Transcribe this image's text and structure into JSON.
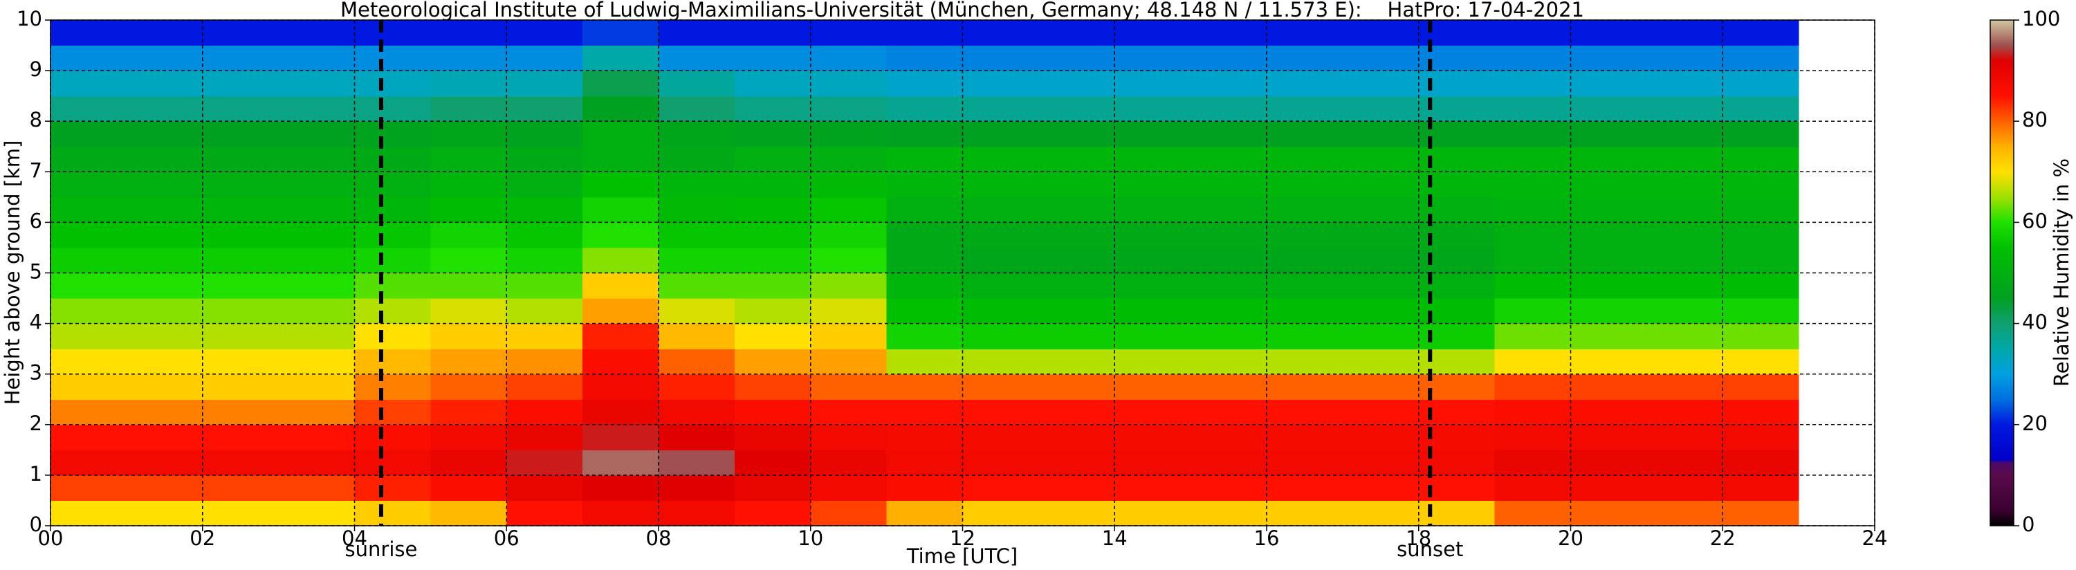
{
  "chart_data": {
    "type": "heatmap",
    "title": "Meteorological Institute of Ludwig-Maximilians-Universität (München, Germany; 48.148 N / 11.573 E):    HatPro: 17-04-2021",
    "x_label": "Time [UTC]",
    "y_label": "Height above ground [km]",
    "colorbar_label": "Relative Humidity in %",
    "xlim": [
      0,
      24
    ],
    "xticks": [
      {
        "value": 0,
        "label": "00"
      },
      {
        "value": 2,
        "label": "02"
      },
      {
        "value": 4,
        "label": "04"
      },
      {
        "value": 6,
        "label": "06"
      },
      {
        "value": 8,
        "label": "08"
      },
      {
        "value": 10,
        "label": "10"
      },
      {
        "value": 12,
        "label": "12"
      },
      {
        "value": 14,
        "label": "14"
      },
      {
        "value": 16,
        "label": "16"
      },
      {
        "value": 18,
        "label": "18"
      },
      {
        "value": 20,
        "label": "20"
      },
      {
        "value": 22,
        "label": "22"
      },
      {
        "value": 24,
        "label": "24"
      }
    ],
    "ylim": [
      0,
      10
    ],
    "yticks": [
      0,
      1,
      2,
      3,
      4,
      5,
      6,
      7,
      8,
      9,
      10
    ],
    "clim": [
      0,
      100
    ],
    "cticks": [
      0,
      20,
      40,
      60,
      80,
      100
    ],
    "grid": true,
    "annotations": [
      {
        "x": 4.35,
        "label": "sunrise"
      },
      {
        "x": 18.15,
        "label": "sunset"
      }
    ],
    "colorscale": [
      [
        0,
        "#000000"
      ],
      [
        3,
        "#3a0030"
      ],
      [
        10,
        "#5a0a4a"
      ],
      [
        12.5,
        "#4a0a6a"
      ],
      [
        13,
        "#0000c8"
      ],
      [
        20,
        "#0018e0"
      ],
      [
        25,
        "#0070e0"
      ],
      [
        30,
        "#00a0e0"
      ],
      [
        35,
        "#00a8a8"
      ],
      [
        40,
        "#10a070"
      ],
      [
        45,
        "#00a020"
      ],
      [
        55,
        "#00c000"
      ],
      [
        60,
        "#20e000"
      ],
      [
        65,
        "#a0e000"
      ],
      [
        70,
        "#ffe000"
      ],
      [
        75,
        "#ffb000"
      ],
      [
        80,
        "#ff6000"
      ],
      [
        85,
        "#ff1000"
      ],
      [
        92,
        "#e00000"
      ],
      [
        95,
        "#a05050"
      ],
      [
        100,
        "#d0c8a0"
      ]
    ],
    "x": [
      0.5,
      1.5,
      2.5,
      3.5,
      4.5,
      5.5,
      6.5,
      7.5,
      8.5,
      9.5,
      10.5,
      11.5,
      12.5,
      13.5,
      14.5,
      15.5,
      16.5,
      17.5,
      18.5,
      19.5,
      20.5,
      21.5,
      22.5
    ],
    "y": [
      0.25,
      0.75,
      1.25,
      1.75,
      2.25,
      2.75,
      3.25,
      3.75,
      4.25,
      4.75,
      5.25,
      5.75,
      6.25,
      6.75,
      7.25,
      7.75,
      8.25,
      8.75,
      9.25,
      9.75
    ],
    "z": [
      [
        70,
        82,
        88,
        85,
        78,
        72,
        70,
        66,
        64,
        60,
        57,
        55,
        52,
        50,
        48,
        45,
        38,
        33,
        28,
        20
      ],
      [
        70,
        82,
        88,
        85,
        78,
        72,
        70,
        66,
        64,
        60,
        57,
        55,
        52,
        50,
        48,
        45,
        38,
        33,
        28,
        20
      ],
      [
        70,
        82,
        88,
        85,
        78,
        72,
        70,
        66,
        64,
        60,
        57,
        55,
        52,
        50,
        48,
        45,
        38,
        33,
        28,
        20
      ],
      [
        70,
        82,
        88,
        85,
        78,
        72,
        70,
        66,
        64,
        60,
        57,
        55,
        52,
        50,
        48,
        45,
        38,
        33,
        28,
        20
      ],
      [
        72,
        84,
        88,
        86,
        82,
        78,
        74,
        70,
        66,
        62,
        58,
        56,
        52,
        50,
        48,
        46,
        38,
        33,
        28,
        20
      ],
      [
        74,
        86,
        90,
        88,
        84,
        80,
        76,
        72,
        68,
        62,
        60,
        58,
        54,
        52,
        50,
        47,
        40,
        34,
        28,
        20
      ],
      [
        85,
        90,
        93,
        90,
        86,
        82,
        77,
        72,
        66,
        62,
        58,
        56,
        53,
        50,
        48,
        46,
        40,
        34,
        28,
        20
      ],
      [
        88,
        92,
        96,
        93,
        90,
        88,
        86,
        84,
        76,
        72,
        64,
        60,
        58,
        55,
        50,
        50,
        45,
        42,
        35,
        22
      ],
      [
        88,
        92,
        95,
        92,
        88,
        84,
        80,
        74,
        68,
        62,
        58,
        56,
        53,
        52,
        48,
        47,
        40,
        36,
        28,
        20
      ],
      [
        85,
        90,
        92,
        90,
        86,
        82,
        76,
        70,
        66,
        62,
        58,
        56,
        54,
        52,
        50,
        46,
        38,
        33,
        28,
        20
      ],
      [
        82,
        88,
        90,
        88,
        85,
        80,
        76,
        72,
        68,
        64,
        60,
        58,
        56,
        53,
        50,
        46,
        38,
        33,
        28,
        20
      ],
      [
        75,
        86,
        88,
        87,
        85,
        80,
        66,
        58,
        55,
        52,
        48,
        48,
        50,
        52,
        52,
        45,
        37,
        32,
        27,
        20
      ],
      [
        72,
        85,
        88,
        87,
        85,
        80,
        66,
        57,
        54,
        50,
        47,
        48,
        50,
        52,
        52,
        45,
        37,
        32,
        27,
        20
      ],
      [
        72,
        85,
        88,
        87,
        85,
        80,
        66,
        57,
        54,
        50,
        47,
        48,
        50,
        52,
        52,
        45,
        37,
        32,
        27,
        20
      ],
      [
        72,
        85,
        88,
        87,
        85,
        80,
        66,
        57,
        54,
        50,
        47,
        48,
        50,
        52,
        52,
        45,
        37,
        32,
        27,
        20
      ],
      [
        72,
        85,
        88,
        87,
        85,
        80,
        66,
        57,
        54,
        50,
        47,
        48,
        50,
        52,
        52,
        45,
        37,
        32,
        27,
        20
      ],
      [
        72,
        85,
        88,
        87,
        85,
        80,
        66,
        57,
        54,
        50,
        47,
        48,
        50,
        52,
        52,
        45,
        37,
        32,
        27,
        20
      ],
      [
        72,
        85,
        88,
        87,
        85,
        80,
        66,
        57,
        54,
        50,
        47,
        48,
        50,
        52,
        52,
        45,
        37,
        32,
        27,
        20
      ],
      [
        72,
        85,
        88,
        87,
        85,
        80,
        66,
        57,
        54,
        50,
        47,
        48,
        50,
        52,
        52,
        45,
        37,
        32,
        27,
        20
      ],
      [
        80,
        88,
        90,
        88,
        86,
        82,
        70,
        63,
        58,
        54,
        50,
        50,
        51,
        52,
        52,
        45,
        37,
        32,
        27,
        20
      ],
      [
        80,
        88,
        90,
        88,
        86,
        82,
        70,
        63,
        58,
        54,
        50,
        50,
        51,
        52,
        52,
        45,
        37,
        32,
        27,
        20
      ],
      [
        80,
        88,
        90,
        88,
        86,
        82,
        70,
        63,
        58,
        54,
        50,
        50,
        51,
        52,
        52,
        45,
        37,
        32,
        27,
        20
      ],
      [
        80,
        88,
        90,
        88,
        86,
        82,
        70,
        63,
        58,
        54,
        50,
        50,
        51,
        52,
        52,
        45,
        37,
        32,
        27,
        20
      ]
    ]
  }
}
